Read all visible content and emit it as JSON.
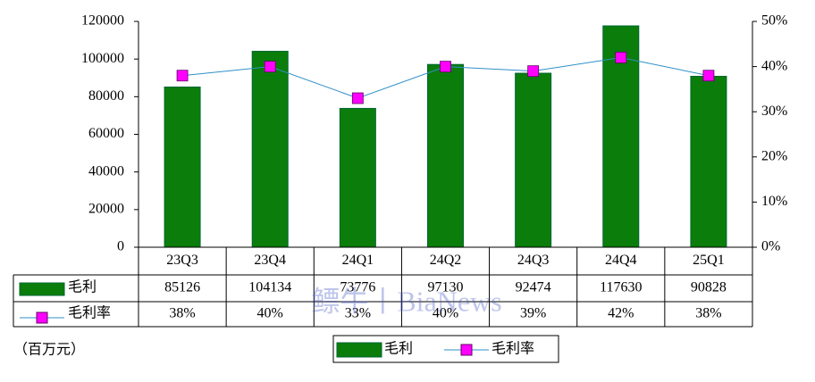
{
  "chart_data": {
    "type": "bar-line-table",
    "categories": [
      "23Q3",
      "23Q4",
      "24Q1",
      "24Q2",
      "24Q3",
      "24Q4",
      "25Q1"
    ],
    "series": [
      {
        "name": "毛利",
        "color": "#0b7d0b",
        "values": [
          85126,
          104134,
          73776,
          97130,
          92474,
          117630,
          90828
        ]
      },
      {
        "name": "毛利率",
        "color": "#ff00ff",
        "line_color": "#2e8fc7",
        "axis": "y2",
        "values": [
          38,
          40,
          33,
          40,
          39,
          42,
          38
        ],
        "value_labels": [
          "38%",
          "40%",
          "33%",
          "40%",
          "39%",
          "42%",
          "38%"
        ]
      }
    ],
    "ylim": [
      0,
      120000
    ],
    "yticks": [
      0,
      20000,
      40000,
      60000,
      80000,
      100000,
      120000
    ],
    "y2lim": [
      0,
      50
    ],
    "y2ticks": [
      {
        "value": 0,
        "label": "0%"
      },
      {
        "value": 10,
        "label": "10%"
      },
      {
        "value": 20,
        "label": "20%"
      },
      {
        "value": 30,
        "label": "30%"
      },
      {
        "value": 40,
        "label": "40%"
      },
      {
        "value": 50,
        "label": "50%"
      }
    ],
    "unit_note": "（百万元）",
    "watermark": "鳔牛丨BiaNews"
  }
}
